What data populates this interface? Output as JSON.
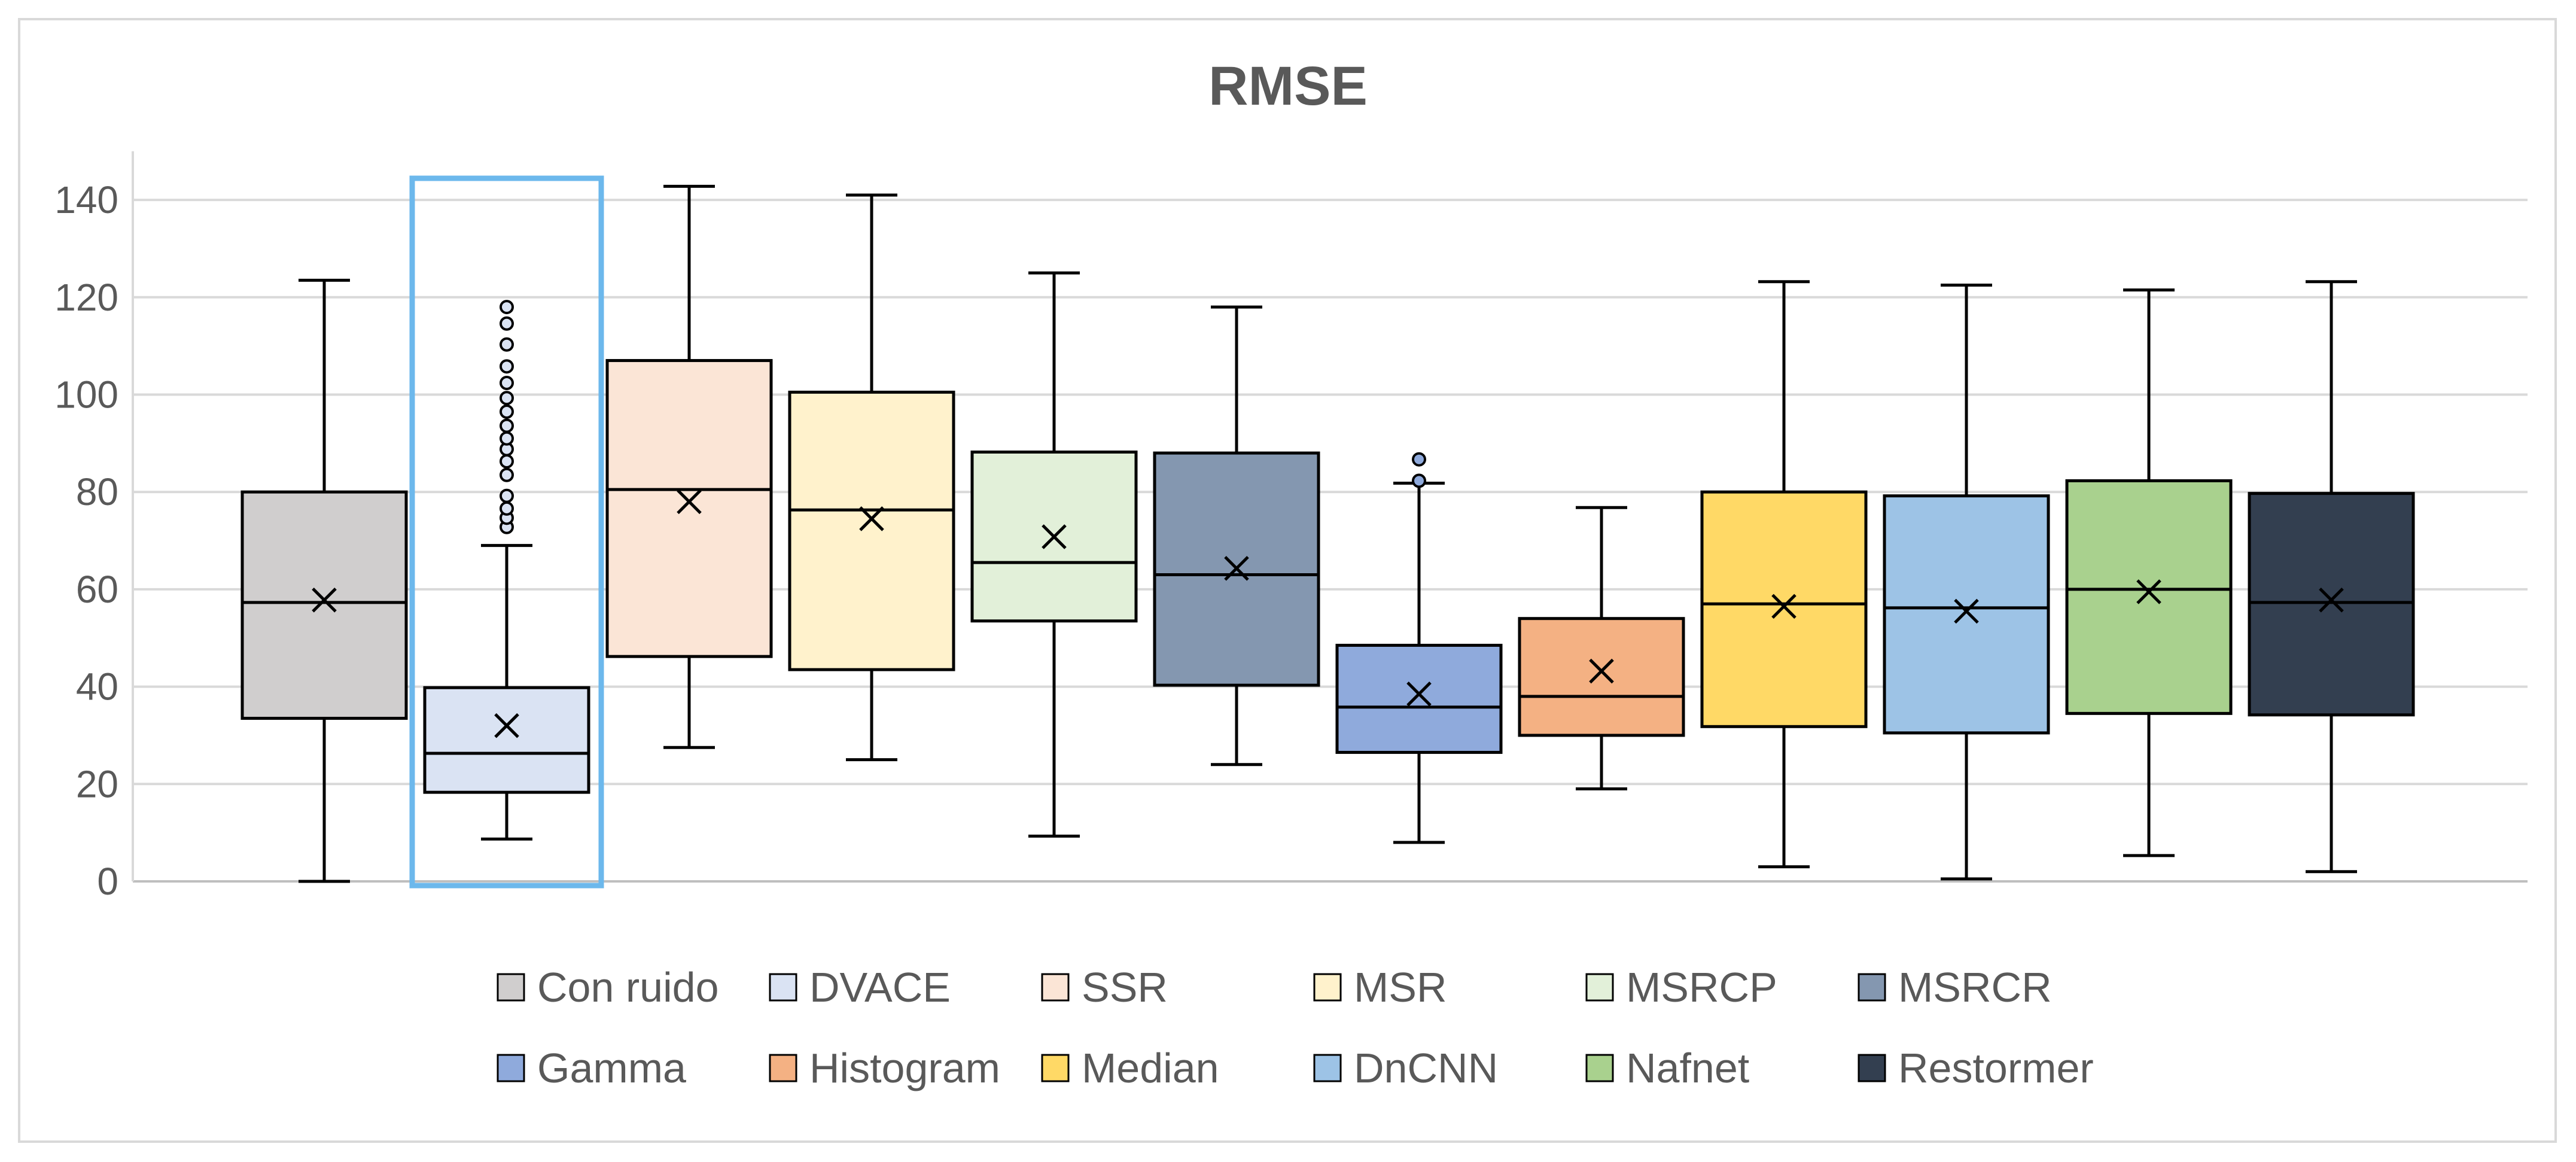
{
  "chart_data": {
    "type": "box",
    "title": "RMSE",
    "xlabel": "",
    "ylabel": "",
    "ylim": [
      0,
      150
    ],
    "yticks": [
      0,
      20,
      40,
      60,
      80,
      100,
      120,
      140
    ],
    "grid": true,
    "legend_position": "bottom",
    "highlighted_series": "DVACE",
    "series": [
      {
        "name": "Con ruido",
        "color": "#d0cece",
        "min": 0,
        "q1": 33.5,
        "median": 57.3,
        "q3": 80,
        "max": 123.5,
        "mean": 57.8,
        "outliers": []
      },
      {
        "name": "DVACE",
        "color": "#dae3f3",
        "min": 8.7,
        "q1": 18.3,
        "median": 26.3,
        "q3": 39.8,
        "max": 69,
        "mean": 32,
        "outliers": [
          72.8,
          74.7,
          76.6,
          79.2,
          83.5,
          86.3,
          88.8,
          91,
          93.6,
          96.5,
          99.3,
          102.4,
          105.8,
          110.3,
          114.6,
          118
        ]
      },
      {
        "name": "SSR",
        "color": "#fbe5d6",
        "min": 27.5,
        "q1": 46.2,
        "median": 80.5,
        "q3": 107,
        "max": 142.8,
        "mean": 78,
        "outliers": []
      },
      {
        "name": "MSR",
        "color": "#fff2cc",
        "min": 25,
        "q1": 43.5,
        "median": 76.3,
        "q3": 100.5,
        "max": 141,
        "mean": 74.5,
        "outliers": []
      },
      {
        "name": "MSRCP",
        "color": "#e2f0d9",
        "min": 9.3,
        "q1": 53.5,
        "median": 65.5,
        "q3": 88.2,
        "max": 125,
        "mean": 70.8,
        "outliers": []
      },
      {
        "name": "MSRCR",
        "color": "#8497b0",
        "min": 24,
        "q1": 40.3,
        "median": 63,
        "q3": 88,
        "max": 118,
        "mean": 64.3,
        "outliers": []
      },
      {
        "name": "Gamma",
        "color": "#8faadc",
        "min": 8,
        "q1": 26.5,
        "median": 35.8,
        "q3": 48.5,
        "max": 81.8,
        "mean": 38.5,
        "outliers": [
          82.3,
          86.7
        ]
      },
      {
        "name": "Histogram",
        "color": "#f4b183",
        "min": 19,
        "q1": 30,
        "median": 38,
        "q3": 54,
        "max": 76.8,
        "mean": 43.2,
        "outliers": []
      },
      {
        "name": "Median",
        "color": "#ffd966",
        "min": 3,
        "q1": 31.8,
        "median": 57,
        "q3": 80,
        "max": 123.2,
        "mean": 56.5,
        "outliers": []
      },
      {
        "name": "DnCNN",
        "color": "#9dc3e6",
        "min": 0.5,
        "q1": 30.5,
        "median": 56.2,
        "q3": 79.2,
        "max": 122.5,
        "mean": 55.5,
        "outliers": []
      },
      {
        "name": "Nafnet",
        "color": "#a9d18e",
        "min": 5.3,
        "q1": 34.5,
        "median": 60,
        "q3": 82.3,
        "max": 121.5,
        "mean": 59.5,
        "outliers": []
      },
      {
        "name": "Restormer",
        "color": "#333f50",
        "min": 2,
        "q1": 34.2,
        "median": 57.3,
        "q3": 79.7,
        "max": 123.2,
        "mean": 57.8,
        "outliers": []
      }
    ]
  }
}
